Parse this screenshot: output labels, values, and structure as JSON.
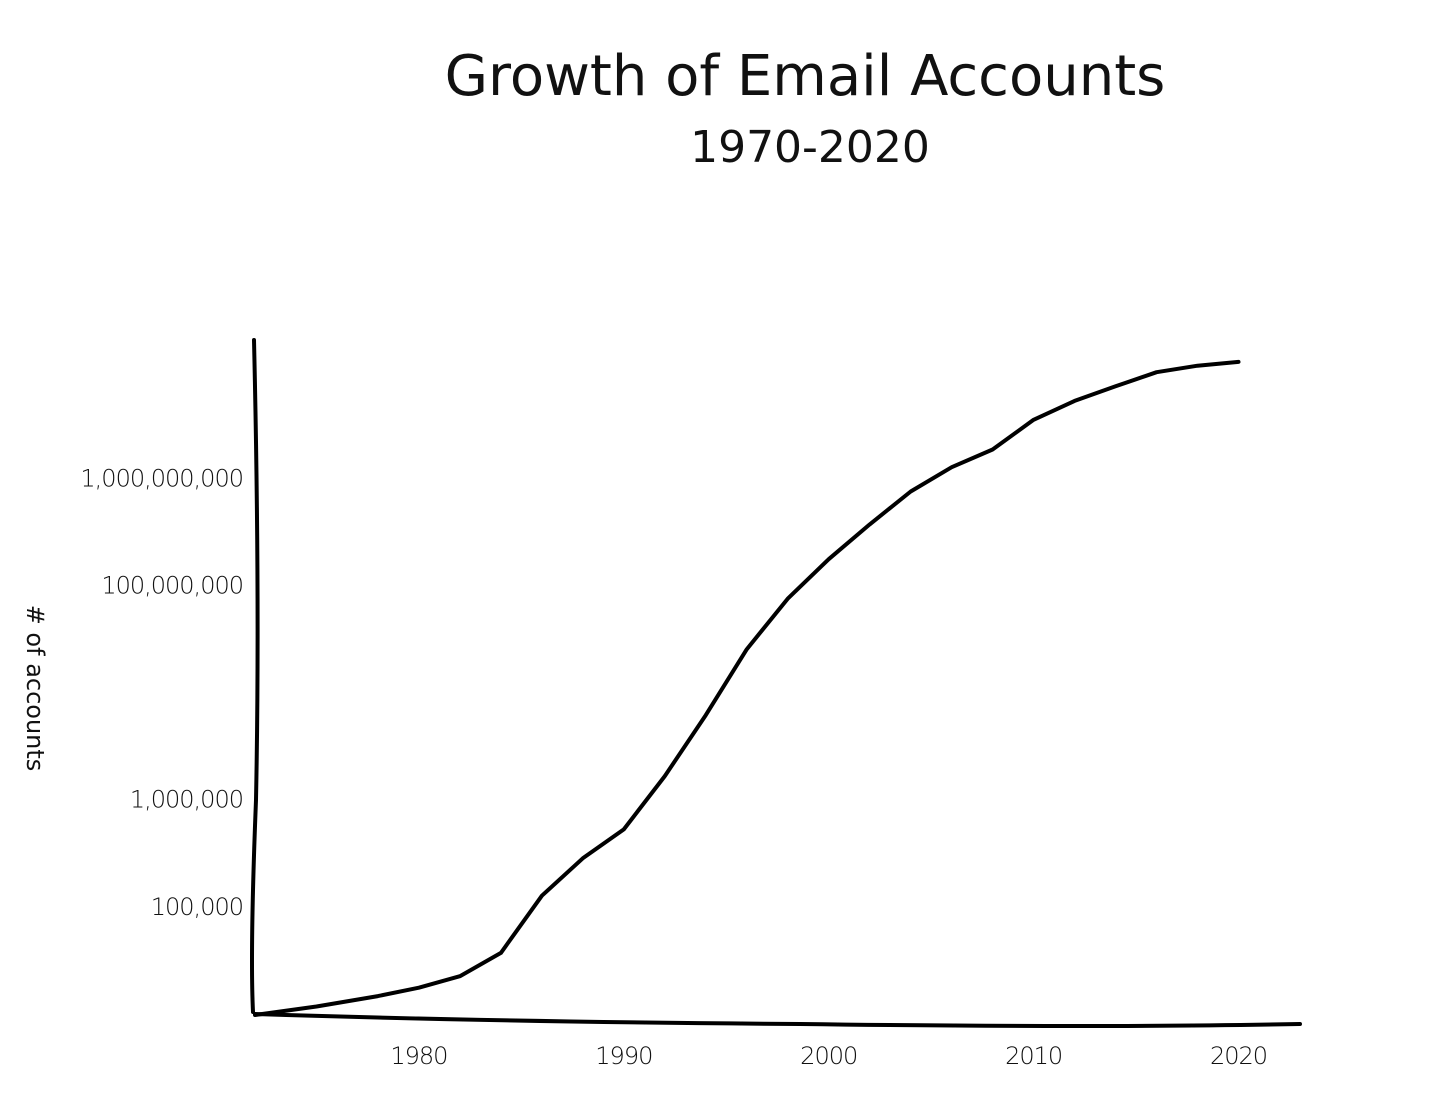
{
  "chart_data": {
    "type": "line",
    "title": "Growth of Email Accounts",
    "subtitle": "1970-2020",
    "y_label": "# of accounts",
    "x": [
      1972,
      1975,
      1978,
      1980,
      1982,
      1984,
      1986,
      1988,
      1990,
      1992,
      1994,
      1996,
      1998,
      2000,
      2002,
      2004,
      2006,
      2008,
      2010,
      2012,
      2014,
      2016,
      2018,
      2020
    ],
    "series": [
      {
        "color": "#000000",
        "values": [
          10000,
          12000,
          15000,
          18000,
          23000,
          38000,
          130000,
          290000,
          540000,
          1700000,
          6300000,
          26000000,
          77000000,
          180000000,
          380000000,
          770000000,
          1300000000,
          1900000000,
          3600000000,
          5400000000,
          7400000000,
          10000000000,
          11500000000,
          12500000000
        ]
      }
    ],
    "xlim": [
      1972,
      2023
    ],
    "xticks": [
      1980,
      1990,
      2000,
      2010,
      2020
    ],
    "ylim": [
      10000,
      20000000000
    ],
    "log_y": true,
    "yticks": [
      {
        "value": 100000,
        "label": "100,000"
      },
      {
        "value": 1000000,
        "label": "1,000,000"
      },
      {
        "value": 100000000,
        "label": "100,000,000"
      },
      {
        "value": 1000000000,
        "label": "1,000,000,000"
      }
    ]
  }
}
